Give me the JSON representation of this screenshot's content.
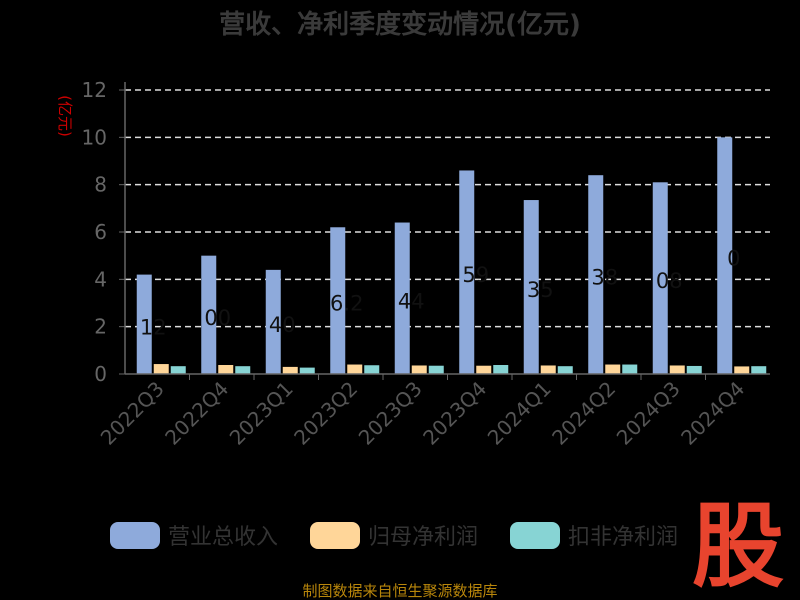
{
  "chart_data": {
    "type": "bar",
    "title": "营收、净利季度变动情况(亿元)",
    "unit_label": "(亿元)",
    "categories": [
      "2022Q3",
      "2022Q4",
      "2023Q1",
      "2023Q2",
      "2023Q3",
      "2023Q4",
      "2024Q1",
      "2024Q2",
      "2024Q3",
      "2024Q4"
    ],
    "series": [
      {
        "name": "营业总收入",
        "color": "#8eaadb",
        "values": [
          4.2,
          5.0,
          4.4,
          6.2,
          6.4,
          8.6,
          7.35,
          8.4,
          8.1,
          10.0
        ]
      },
      {
        "name": "归母净利润",
        "color": "#ffd699",
        "values": [
          0.42,
          0.38,
          0.3,
          0.4,
          0.36,
          0.35,
          0.36,
          0.4,
          0.36,
          0.32
        ]
      },
      {
        "name": "扣非净利润",
        "color": "#87d4d4",
        "values": [
          0.33,
          0.33,
          0.27,
          0.37,
          0.35,
          0.38,
          0.33,
          0.4,
          0.34,
          0.33
        ]
      }
    ],
    "data_labels": [
      "12",
      "00",
      "40",
      "6.2",
      "44",
      "59",
      "35",
      "38",
      "08",
      "0"
    ],
    "ylim": [
      0,
      12
    ],
    "yticks": [
      0,
      2,
      4,
      6,
      8,
      10,
      12
    ],
    "grid": true,
    "legend_position": "bottom"
  },
  "footer": {
    "source": "制图数据来自恒生聚源数据库"
  },
  "logo": {
    "text": "股"
  }
}
